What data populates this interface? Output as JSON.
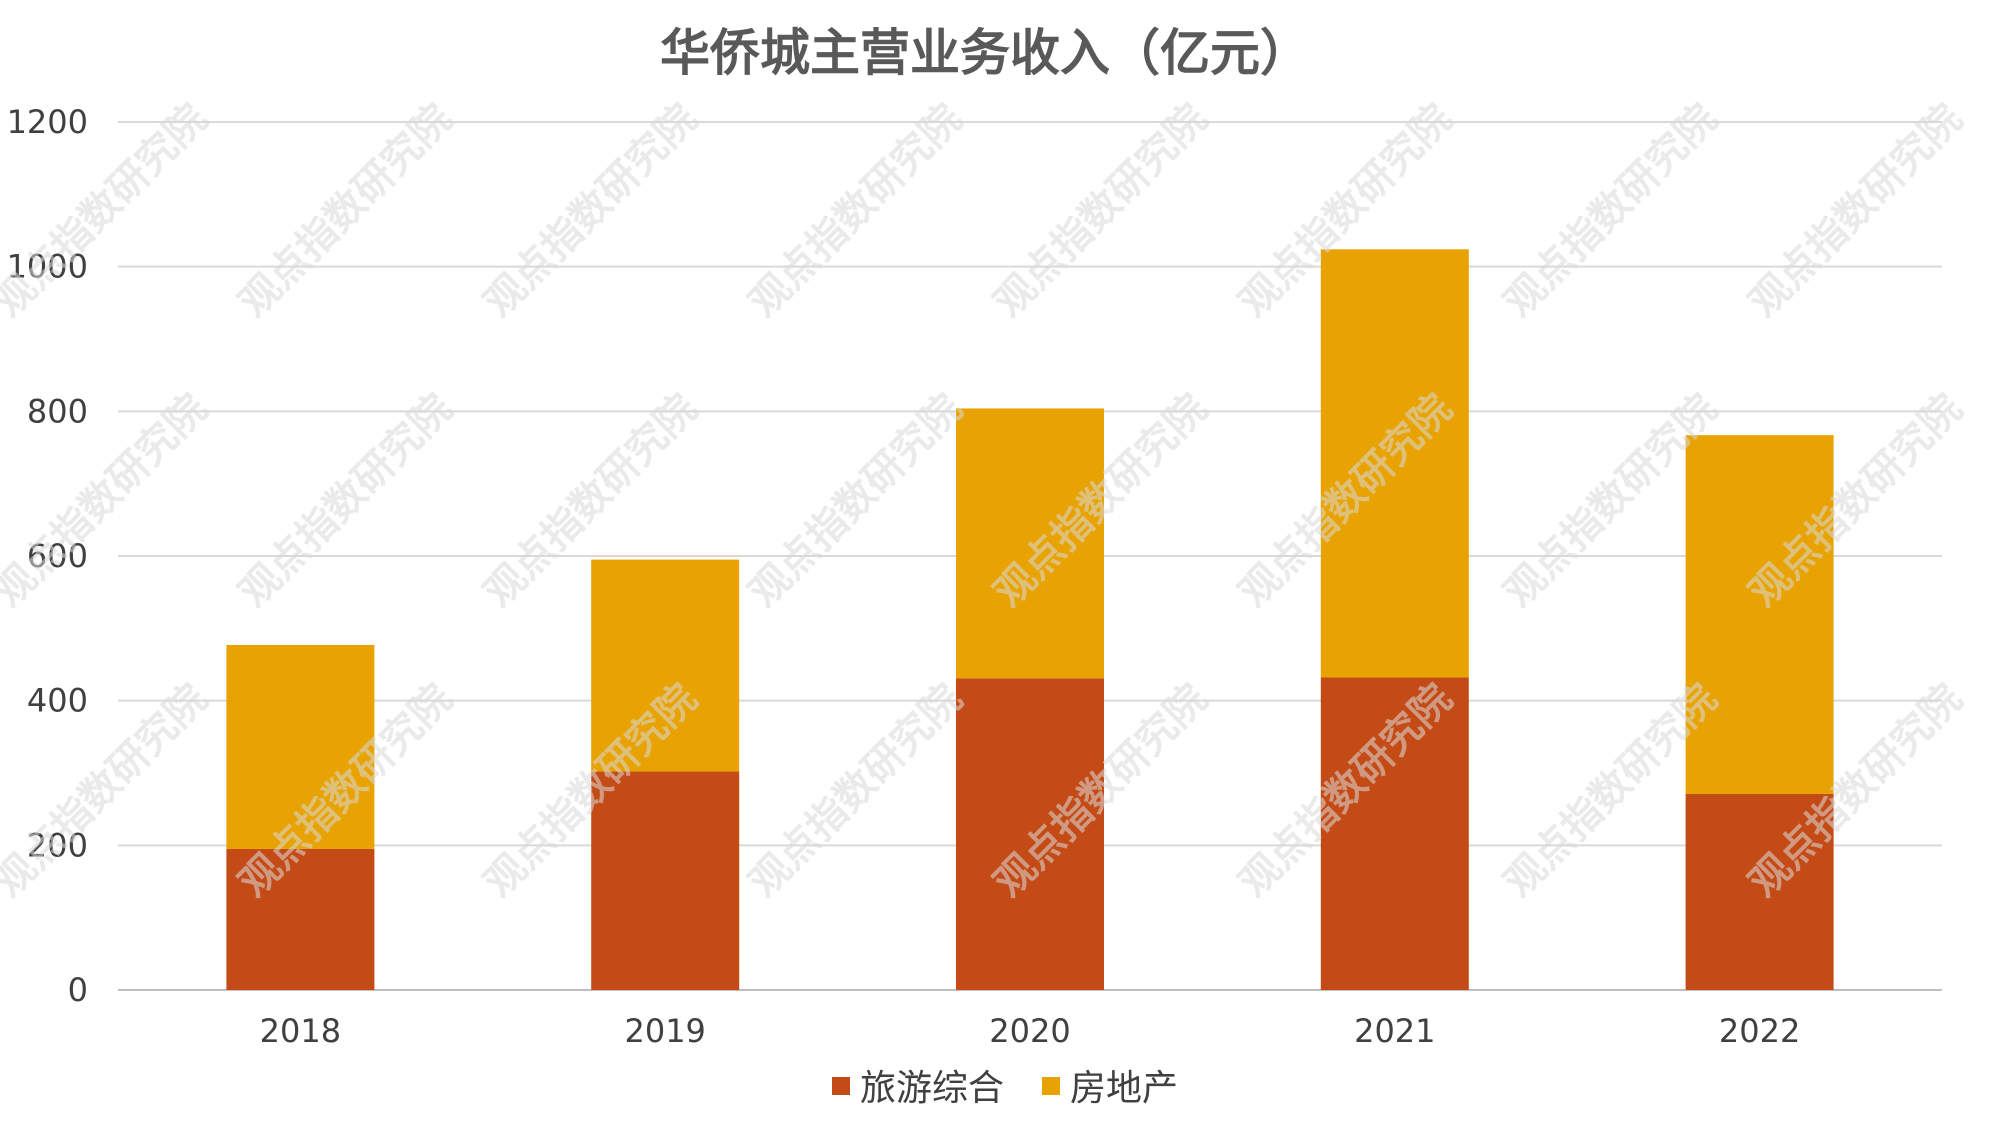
{
  "chart_data": {
    "type": "bar",
    "stacked": true,
    "title": "华侨城主营业务收入（亿元）",
    "categories": [
      "2018",
      "2019",
      "2020",
      "2021",
      "2022"
    ],
    "series": [
      {
        "name": "旅游综合",
        "color": "#c54b16",
        "values": [
          195,
          302,
          431,
          432,
          271
        ]
      },
      {
        "name": "房地产",
        "color": "#e8a202",
        "values": [
          282,
          293,
          373,
          592,
          496
        ]
      }
    ],
    "ylim": [
      0,
      1200
    ],
    "yticks": [
      0,
      200,
      400,
      600,
      800,
      1000,
      1200
    ],
    "grid": true,
    "legend": "bottom-center"
  },
  "watermark": "观点指数研究院"
}
